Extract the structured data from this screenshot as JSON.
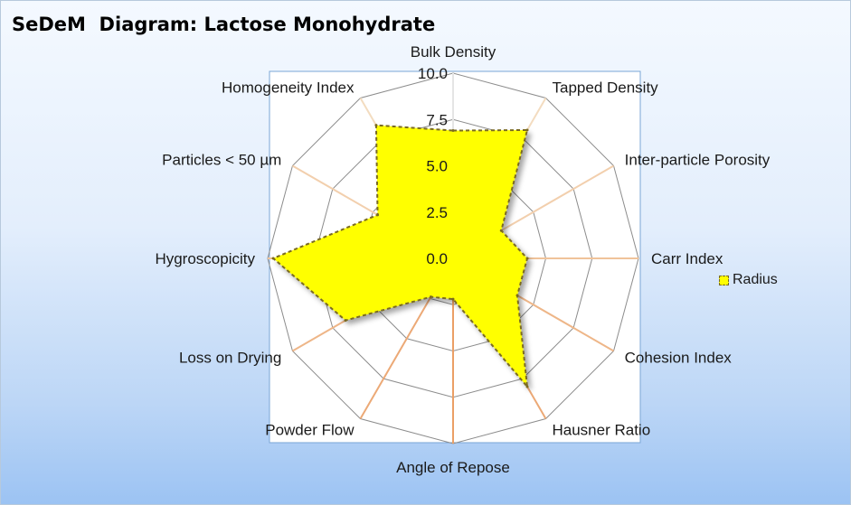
{
  "chart_data": {
    "type": "radar",
    "title": "SeDeM  Diagram: Lactose Monohydrate",
    "categories": [
      "Bulk Density",
      "Tapped Density",
      "Inter-particle Porosity",
      "Carr Index",
      "Cohesion Index",
      "Hausner Ratio",
      "Angle of Repose",
      "Powder Flow",
      "Loss on Drying",
      "Hygroscopicity",
      "Particles < 50 µm",
      "Homogeneity Index"
    ],
    "tick_labels": [
      "0.0",
      "2.5",
      "5.0",
      "7.5",
      "10.0"
    ],
    "rlim": [
      0,
      10
    ],
    "series": [
      {
        "name": "Radius",
        "values": [
          6.9,
          8.0,
          3.0,
          4.0,
          4.0,
          8.0,
          2.2,
          2.4,
          6.7,
          9.7,
          4.7,
          8.3
        ],
        "fill_color": "#ffff00",
        "line_color": "#7a6a20"
      }
    ],
    "legend_position": "right",
    "grid": true
  }
}
